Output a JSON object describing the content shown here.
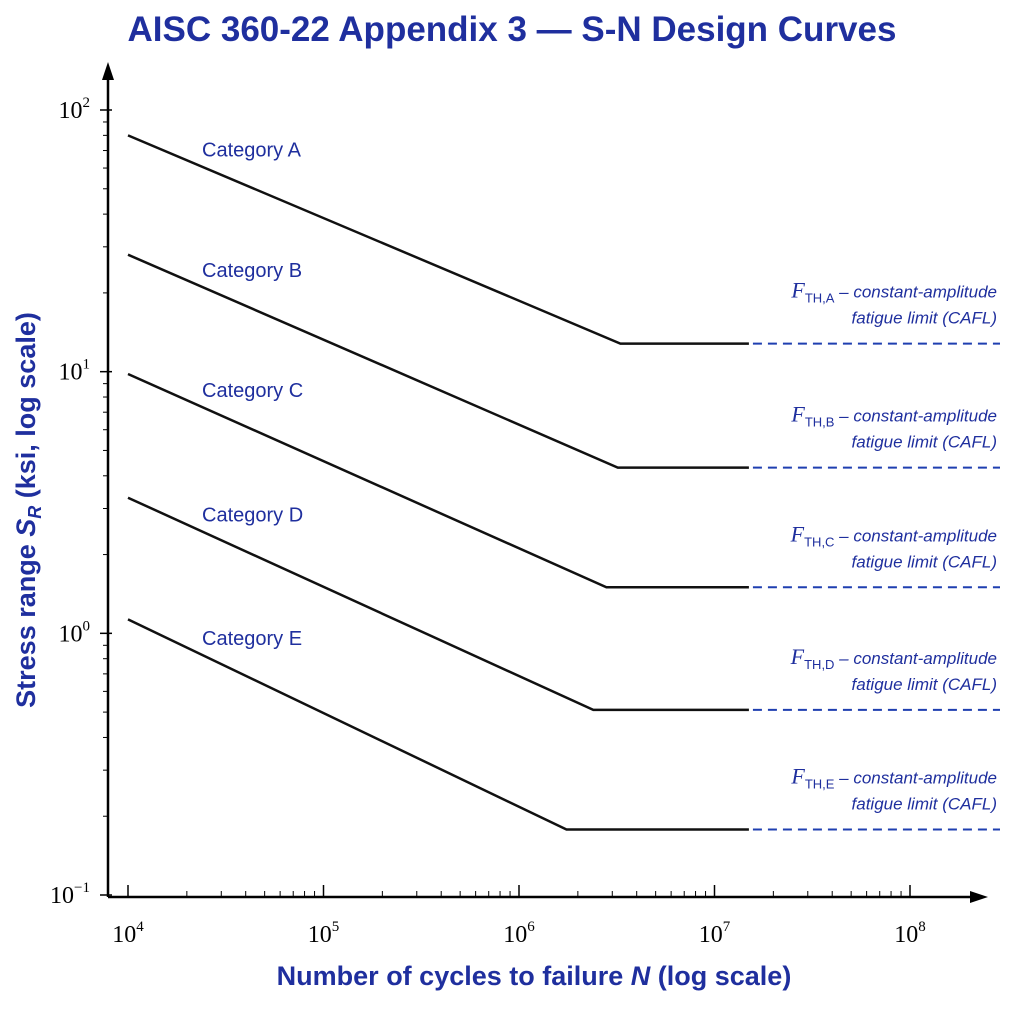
{
  "chart_data": {
    "type": "line",
    "title": "AISC 360-22 Appendix 3 — S-N Design Curves",
    "xlabel_prefix": "Number of cycles to failure ",
    "xlabel_var": "N",
    "xlabel_suffix": " (log scale)",
    "ylabel_prefix": "Stress range ",
    "ylabel_var": "S",
    "ylabel_sub": "R",
    "ylabel_suffix": " (ksi, log scale)",
    "xscale": "log",
    "yscale": "log",
    "xlim": [
      10000,
      100000000
    ],
    "ylim": [
      0.1,
      100
    ],
    "x_ticks": [
      {
        "value": 10000,
        "base": "10",
        "exp": "4"
      },
      {
        "value": 100000,
        "base": "10",
        "exp": "5"
      },
      {
        "value": 1000000,
        "base": "10",
        "exp": "6"
      },
      {
        "value": 10000000,
        "base": "10",
        "exp": "7"
      },
      {
        "value": 100000000,
        "base": "10",
        "exp": "8"
      }
    ],
    "y_ticks": [
      {
        "value": 100,
        "base": "10",
        "exp": "2"
      },
      {
        "value": 10,
        "base": "10",
        "exp": "1"
      },
      {
        "value": 1,
        "base": "10",
        "exp": "0"
      },
      {
        "value": 0.1,
        "base": "10",
        "exp": "−1"
      }
    ],
    "grid": false,
    "line_color": "#111111",
    "accent_color": "#1f2f9e",
    "threshold_dash_color": "#1f3fb0",
    "series": [
      {
        "name": "Category A",
        "points": [
          [
            10000,
            80
          ],
          [
            3300000,
            12.8
          ],
          [
            15000000,
            12.8
          ]
        ],
        "threshold_x_end": 100000000,
        "threshold_symbol": "F",
        "threshold_sub": "TH,A",
        "threshold_line1": " – constant-amplitude",
        "threshold_line2": "fatigue limit (CAFL)"
      },
      {
        "name": "Category B",
        "points": [
          [
            10000,
            28
          ],
          [
            3200000,
            4.3
          ],
          [
            15000000,
            4.3
          ]
        ],
        "threshold_x_end": 100000000,
        "threshold_symbol": "F",
        "threshold_sub": "TH,B",
        "threshold_line1": " – constant-amplitude",
        "threshold_line2": "fatigue limit (CAFL)"
      },
      {
        "name": "Category C",
        "points": [
          [
            10000,
            9.8
          ],
          [
            2800000,
            1.5
          ],
          [
            15000000,
            1.5
          ]
        ],
        "threshold_x_end": 100000000,
        "threshold_symbol": "F",
        "threshold_sub": "TH,C",
        "threshold_line1": " – constant-amplitude",
        "threshold_line2": "fatigue limit (CAFL)"
      },
      {
        "name": "Category D",
        "points": [
          [
            10000,
            3.3
          ],
          [
            2400000,
            0.51
          ],
          [
            15000000,
            0.51
          ]
        ],
        "threshold_x_end": 100000000,
        "threshold_symbol": "F",
        "threshold_sub": "TH,D",
        "threshold_line1": " – constant-amplitude",
        "threshold_line2": "fatigue limit (CAFL)"
      },
      {
        "name": "Category E",
        "points": [
          [
            10000,
            1.13
          ],
          [
            1750000,
            0.178
          ],
          [
            15000000,
            0.178
          ]
        ],
        "threshold_x_end": 100000000,
        "threshold_symbol": "F",
        "threshold_sub": "TH,E",
        "threshold_line1": " – constant-amplitude",
        "threshold_line2": "fatigue limit (CAFL)"
      }
    ]
  }
}
